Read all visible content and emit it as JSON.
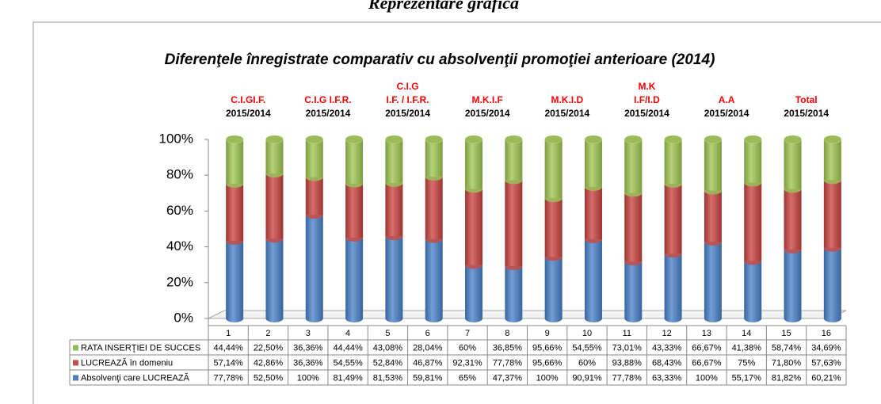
{
  "chart_data": {
    "type": "bar",
    "stacked": "percent",
    "super_title": "Reprezentare grafică",
    "title": "Diferenţele înregistrate comparativ cu absolvenţii promoţiei anterioare (2014)",
    "categories": [
      "1",
      "2",
      "3",
      "4",
      "5",
      "6",
      "7",
      "8",
      "9",
      "10",
      "11",
      "12",
      "13",
      "14",
      "15",
      "16"
    ],
    "series": [
      {
        "name": "RATA INSERŢIEI DE SUCCES",
        "color": "#9bbb59",
        "values": [
          44.44,
          22.5,
          36.36,
          44.44,
          43.08,
          28.04,
          60,
          36.85,
          95.66,
          54.55,
          73.01,
          43.33,
          66.67,
          41.38,
          58.74,
          34.69
        ],
        "value_labels": [
          "44,44%",
          "22,50%",
          "36,36%",
          "44,44%",
          "43,08%",
          "28,04%",
          "60%",
          "36,85%",
          "95,66%",
          "54,55%",
          "73,01%",
          "43,33%",
          "66,67%",
          "41,38%",
          "58,74%",
          "34,69%"
        ]
      },
      {
        "name": "LUCREAZĂ în domeniu",
        "color": "#c0504d",
        "values": [
          57.14,
          42.86,
          36.36,
          54.55,
          52.84,
          46.87,
          92.31,
          77.78,
          95.66,
          60,
          93.88,
          68.43,
          66.67,
          75,
          71.8,
          57.63
        ],
        "value_labels": [
          "57,14%",
          "42,86%",
          "36,36%",
          "54,55%",
          "52,84%",
          "46,87%",
          "92,31%",
          "77,78%",
          "95,66%",
          "60%",
          "93,88%",
          "68,43%",
          "66,67%",
          "75%",
          "71,80%",
          "57,63%"
        ]
      },
      {
        "name": "Absolvenţi care LUCREAZĂ",
        "color": "#4f81bd",
        "values": [
          77.78,
          52.5,
          100,
          81.49,
          81.53,
          59.81,
          65,
          47.37,
          100,
          90.91,
          77.78,
          63.33,
          100,
          55.17,
          81.82,
          60.21
        ],
        "value_labels": [
          "77,78%",
          "52,50%",
          "100%",
          "81,49%",
          "81,53%",
          "59,81%",
          "65%",
          "47,37%",
          "100%",
          "90,91%",
          "77,78%",
          "63,33%",
          "100%",
          "55,17%",
          "81,82%",
          "60,21%"
        ]
      }
    ],
    "ylim": [
      0,
      100
    ],
    "yticks": [
      {
        "value": 0,
        "label": "0%"
      },
      {
        "value": 20,
        "label": "20%"
      },
      {
        "value": 40,
        "label": "40%"
      },
      {
        "value": 60,
        "label": "60%"
      },
      {
        "value": 80,
        "label": "80%"
      },
      {
        "value": 100,
        "label": "100%"
      }
    ],
    "grid": false,
    "annotations": [
      {
        "lines": [
          "C.I.GI.F."
        ],
        "period": "2015/2014"
      },
      {
        "lines": [
          "C.I.G  I.F.R."
        ],
        "period": "2015/2014"
      },
      {
        "lines": [
          "C.I.G",
          "I.F. / I.F.R."
        ],
        "period": "2015/2014"
      },
      {
        "lines": [
          "M.K.I.F"
        ],
        "period": "2015/2014"
      },
      {
        "lines": [
          "M.K.I.D"
        ],
        "period": "2015/2014"
      },
      {
        "lines": [
          "M.K",
          "I.F/I.D"
        ],
        "period": "2015/2014"
      },
      {
        "lines": [
          "A.A"
        ],
        "period": "2015/2014"
      },
      {
        "lines": [
          "Total"
        ],
        "period": "2015/2014"
      }
    ]
  }
}
